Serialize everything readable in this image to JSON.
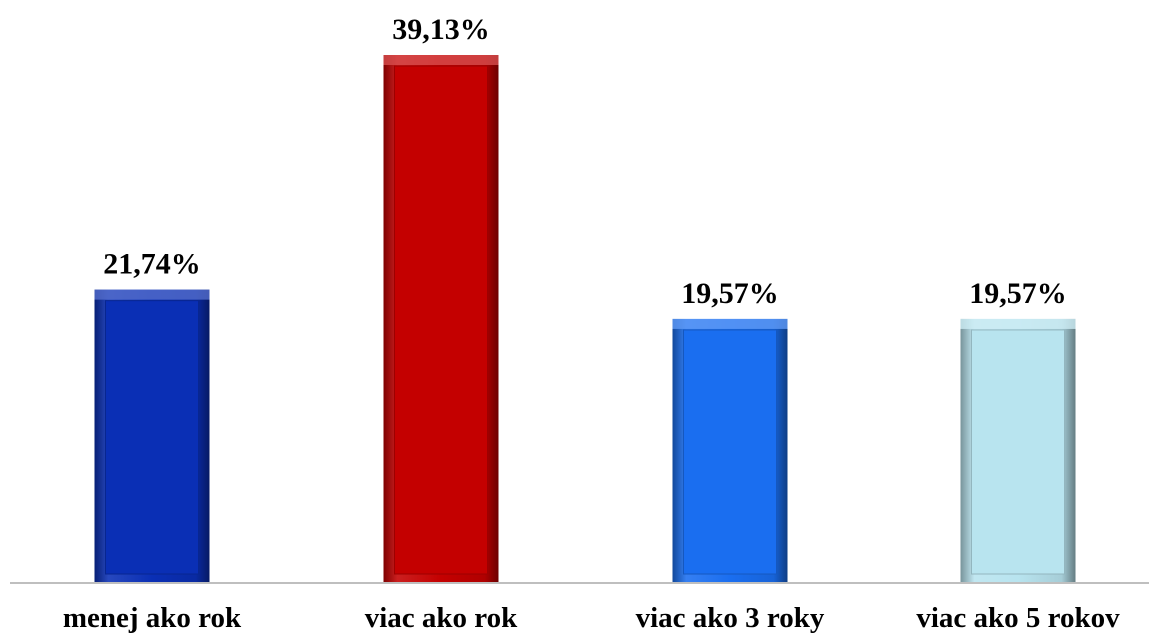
{
  "chart_data": {
    "type": "bar",
    "categories": [
      "menej ako rok",
      "viac ako rok",
      "viac ako 3 roky",
      "viac ako 5 rokov"
    ],
    "values": [
      21.74,
      39.13,
      19.57,
      19.57
    ],
    "value_labels": [
      "21,74%",
      "39,13%",
      "19,57%",
      "19,57%"
    ],
    "colors": [
      "#0a2fb5",
      "#c40000",
      "#1a6ef0",
      "#b8e4ef"
    ],
    "ylim": [
      0,
      40
    ],
    "grid": false,
    "legend": "none",
    "title": "",
    "xlabel": "",
    "ylabel": ""
  }
}
